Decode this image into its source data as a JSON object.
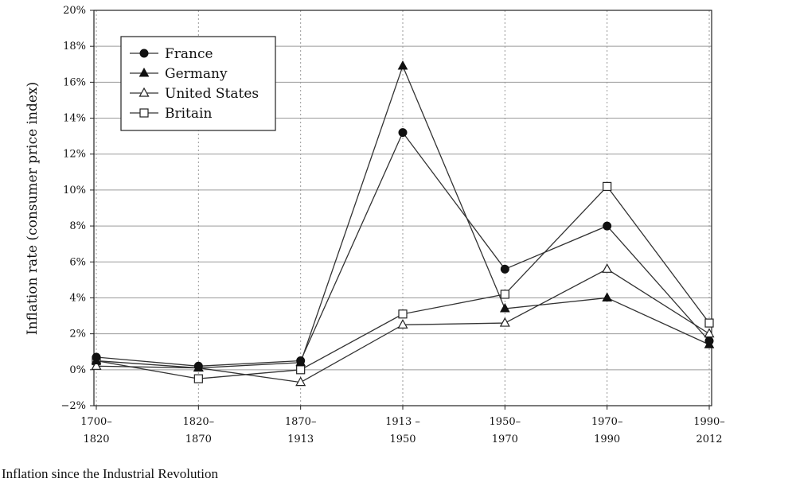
{
  "caption": "Inflation since the Industrial Revolution",
  "chart_data": {
    "type": "line",
    "ylabel": "Inflation rate (consumer price index)",
    "xlabel": "",
    "ylim": [
      -2,
      20
    ],
    "yticks": [
      -2,
      0,
      2,
      4,
      6,
      8,
      10,
      12,
      14,
      16,
      18,
      20
    ],
    "ytick_labels": [
      "−2%",
      "0%",
      "2%",
      "4%",
      "6%",
      "8%",
      "10%",
      "12%",
      "14%",
      "16%",
      "18%",
      "20%"
    ],
    "categories": [
      [
        "1700–",
        "1820"
      ],
      [
        "1820–",
        "1870"
      ],
      [
        "1870–",
        "1913"
      ],
      [
        "1913 –",
        "1950"
      ],
      [
        "1950–",
        "1970"
      ],
      [
        "1970–",
        "1990"
      ],
      [
        "1990–",
        "2012"
      ]
    ],
    "grid": true,
    "legend_position": "top-left",
    "series": [
      {
        "name": "France",
        "marker": "filled-circle",
        "values": [
          0.7,
          0.2,
          0.5,
          13.2,
          5.6,
          8.0,
          1.6
        ]
      },
      {
        "name": "Germany",
        "marker": "filled-triangle",
        "values": [
          0.5,
          0.1,
          0.4,
          16.9,
          3.4,
          4.0,
          1.4
        ]
      },
      {
        "name": "United States",
        "marker": "open-triangle",
        "values": [
          0.2,
          0.1,
          -0.7,
          2.5,
          2.6,
          5.6,
          2.0
        ]
      },
      {
        "name": "Britain",
        "marker": "open-square",
        "values": [
          0.5,
          -0.5,
          0.0,
          3.1,
          4.2,
          10.2,
          2.6
        ]
      }
    ]
  }
}
